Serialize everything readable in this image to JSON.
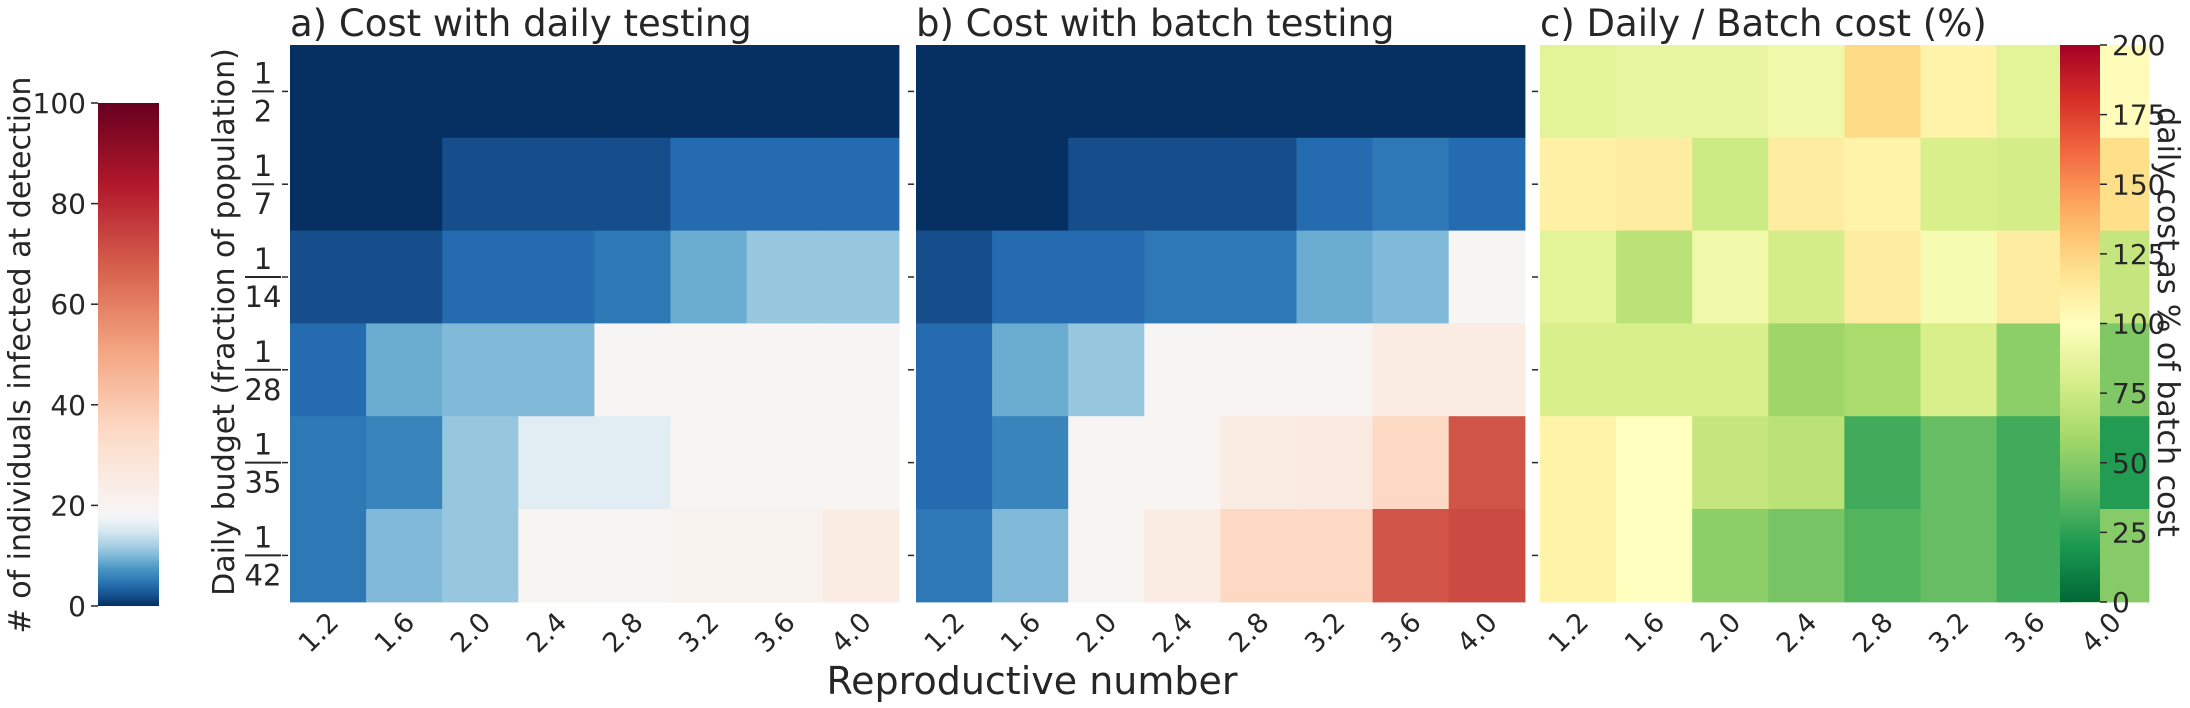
{
  "figure": {
    "xlabel": "Reproductive number",
    "ylabel": "Daily budget (fraction of population)",
    "left_colorbar_label": "# of individuals infected at detection",
    "right_colorbar_label": "daily cost as % of batch cost",
    "left_colorbar_ticks": [
      "0",
      "20",
      "40",
      "60",
      "80",
      "100"
    ],
    "right_colorbar_ticks": [
      "0",
      "25",
      "50",
      "75",
      "100",
      "125",
      "150",
      "175",
      "200"
    ]
  },
  "chart_data": [
    {
      "type": "heatmap",
      "title": "a) Cost with daily testing",
      "colormap": "RdBu_r",
      "vlim": [
        0,
        100
      ],
      "x": [
        "1.2",
        "1.6",
        "2.0",
        "2.4",
        "2.8",
        "3.2",
        "3.6",
        "4.0"
      ],
      "y": [
        {
          "num": "1",
          "den": "2"
        },
        {
          "num": "1",
          "den": "7"
        },
        {
          "num": "1",
          "den": "14"
        },
        {
          "num": "1",
          "den": "28"
        },
        {
          "num": "1",
          "den": "35"
        },
        {
          "num": "1",
          "den": "42"
        }
      ],
      "values": [
        [
          0,
          0,
          0,
          0,
          0,
          0,
          0,
          0
        ],
        [
          0,
          0,
          2,
          2,
          2,
          4,
          4,
          4
        ],
        [
          2,
          2,
          4,
          4,
          5,
          9,
          11,
          11
        ],
        [
          4,
          9,
          10,
          10,
          19,
          19,
          20,
          19
        ],
        [
          5,
          6,
          11,
          16,
          16,
          19,
          19,
          20
        ],
        [
          5,
          10,
          11,
          19,
          20,
          21,
          21,
          25
        ]
      ]
    },
    {
      "type": "heatmap",
      "title": "b) Cost with batch testing",
      "colormap": "RdBu_r",
      "vlim": [
        0,
        100
      ],
      "x": [
        "1.2",
        "1.6",
        "2.0",
        "2.4",
        "2.8",
        "3.2",
        "3.6",
        "4.0"
      ],
      "y": [
        {
          "num": "1",
          "den": "2"
        },
        {
          "num": "1",
          "den": "7"
        },
        {
          "num": "1",
          "den": "14"
        },
        {
          "num": "1",
          "den": "28"
        },
        {
          "num": "1",
          "den": "35"
        },
        {
          "num": "1",
          "den": "42"
        }
      ],
      "values": [
        [
          0,
          0,
          0,
          0,
          0,
          0,
          0,
          0
        ],
        [
          0,
          0,
          2,
          2,
          2,
          4,
          5,
          4
        ],
        [
          2,
          4,
          4,
          5,
          5,
          9,
          10,
          19
        ],
        [
          4,
          9,
          11,
          19,
          20,
          20,
          25,
          25
        ],
        [
          4,
          6,
          19,
          20,
          25,
          26,
          35,
          70
        ],
        [
          5,
          10,
          20,
          25,
          35,
          35,
          70,
          72
        ]
      ]
    },
    {
      "type": "heatmap",
      "title": "c) Daily / Batch cost (%)",
      "colormap": "RdYlGn_r",
      "vlim": [
        0,
        200
      ],
      "x": [
        "1.2",
        "1.6",
        "2.0",
        "2.4",
        "2.8",
        "3.2",
        "3.6",
        "4.0"
      ],
      "y": [
        {
          "num": "1",
          "den": "2"
        },
        {
          "num": "1",
          "den": "7"
        },
        {
          "num": "1",
          "den": "14"
        },
        {
          "num": "1",
          "den": "28"
        },
        {
          "num": "1",
          "den": "35"
        },
        {
          "num": "1",
          "den": "42"
        }
      ],
      "values": [
        [
          85,
          88,
          88,
          92,
          122,
          108,
          85,
          102
        ],
        [
          110,
          112,
          75,
          112,
          108,
          80,
          78,
          120
        ],
        [
          85,
          68,
          92,
          78,
          112,
          95,
          112,
          72
        ],
        [
          80,
          80,
          80,
          58,
          62,
          80,
          52,
          48
        ],
        [
          108,
          100,
          72,
          68,
          30,
          40,
          30,
          22
        ],
        [
          108,
          100,
          52,
          45,
          35,
          40,
          30,
          50
        ]
      ]
    }
  ]
}
